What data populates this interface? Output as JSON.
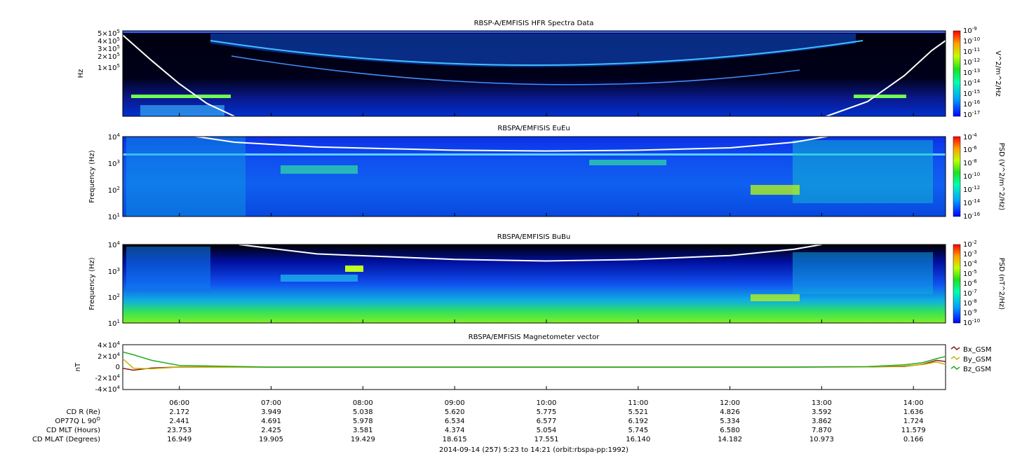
{
  "chart_data": [
    {
      "type": "heatmap",
      "title": "RBSP-A/EMFISIS  HFR Spectra Data",
      "ylabel": "Hz",
      "y_tick_labels": [
        "5×10^5",
        "4×10^5",
        "3×10^5",
        "2×10^5",
        "1×10^5"
      ],
      "y_tick_values": [
        500000,
        400000,
        300000,
        200000,
        100000
      ],
      "y_scale": "log",
      "ylim": [
        10000,
        550000
      ],
      "colorbar": {
        "label": "V^2/m^2/Hz",
        "scale": "log",
        "range": [
          1e-17,
          1e-09
        ],
        "tick_labels": [
          "10^-9",
          "10^-10",
          "10^-11",
          "10^-12",
          "10^-13",
          "10^-14",
          "10^-15",
          "10^-16",
          "10^-17"
        ]
      }
    },
    {
      "type": "heatmap",
      "title": "RBSPA/EMFISIS  EuEu",
      "ylabel": "Frequency (Hz)",
      "y_tick_labels": [
        "10^4",
        "10^3",
        "10^2",
        "10^1"
      ],
      "y_scale": "log",
      "ylim": [
        10,
        10000
      ],
      "colorbar": {
        "label": "PSD (V^2/m^2/Hz)",
        "scale": "log",
        "range": [
          1e-16,
          0.0001
        ],
        "tick_labels": [
          "10^-4",
          "10^-6",
          "10^-8",
          "10^-10",
          "10^-12",
          "10^-14",
          "10^-16"
        ]
      }
    },
    {
      "type": "heatmap",
      "title": "RBSPA/EMFISIS  BuBu",
      "ylabel": "Frequency (Hz)",
      "y_tick_labels": [
        "10^4",
        "10^3",
        "10^2",
        "10^1"
      ],
      "y_scale": "log",
      "ylim": [
        10,
        10000
      ],
      "colorbar": {
        "label": "PSD (nT^2/Hz)",
        "scale": "log",
        "range": [
          1e-10,
          0.01
        ],
        "tick_labels": [
          "10^-2",
          "10^-3",
          "10^-4",
          "10^-5",
          "10^-6",
          "10^-7",
          "10^-8",
          "10^-9",
          "10^-10"
        ]
      }
    },
    {
      "type": "line",
      "title": "RBSPA/EMFISIS  Magnetometer vector",
      "ylabel": "nT",
      "y_tick_labels": [
        "4×10^4",
        "2×10^4",
        "0",
        "-2×10^4",
        "-4×10^4"
      ],
      "ylim": [
        -40000,
        40000
      ],
      "x_hours": [
        5.383,
        5.5,
        5.7,
        6.0,
        7.0,
        9.0,
        11.0,
        12.5,
        13.5,
        13.9,
        14.1,
        14.25,
        14.35
      ],
      "series": [
        {
          "name": "Bx_GSM",
          "color": "#8b1a1a",
          "values": [
            -2000,
            -5500,
            -1500,
            300,
            0,
            0,
            0,
            0,
            200,
            1200,
            5000,
            12000,
            10000
          ]
        },
        {
          "name": "By_GSM",
          "color": "#c8b400",
          "values": [
            15000,
            -2000,
            -3000,
            0,
            0,
            0,
            0,
            0,
            400,
            2000,
            4500,
            9000,
            5000
          ]
        },
        {
          "name": "Bz_GSM",
          "color": "#22aa22",
          "values": [
            27000,
            22000,
            12000,
            3000,
            0,
            0,
            0,
            0,
            1000,
            4000,
            8000,
            15000,
            19000
          ]
        }
      ]
    }
  ],
  "x_axis": {
    "time_ticks": [
      "06:00",
      "07:00",
      "08:00",
      "09:00",
      "10:00",
      "11:00",
      "12:00",
      "13:00",
      "14:00"
    ],
    "tick_hours": [
      6,
      7,
      8,
      9,
      10,
      11,
      12,
      13,
      14
    ],
    "range_hours": [
      5.383,
      14.35
    ]
  },
  "ephemeris": {
    "labels": [
      "CD R (Re)",
      "OP77Q L 90",
      "CD MLT (Hours)",
      "CD MLAT (Degrees)"
    ],
    "label_superscript": "O",
    "rows": [
      [
        "2.172",
        "3.949",
        "5.038",
        "5.620",
        "5.775",
        "5.521",
        "4.826",
        "3.592",
        "1.636"
      ],
      [
        "2.441",
        "4.691",
        "5.978",
        "6.534",
        "6.577",
        "6.192",
        "5.334",
        "3.862",
        "1.724"
      ],
      [
        "23.753",
        "2.425",
        "3.581",
        "4.374",
        "5.054",
        "5.745",
        "6.580",
        "7.870",
        "11.579"
      ],
      [
        "16.949",
        "19.905",
        "19.429",
        "18.615",
        "17.551",
        "16.140",
        "14.182",
        "10.973",
        "0.166"
      ]
    ]
  },
  "footer": "2014-09-14 (257) 5:23 to 14:21 (orbit:rbspa-pp:1992)"
}
